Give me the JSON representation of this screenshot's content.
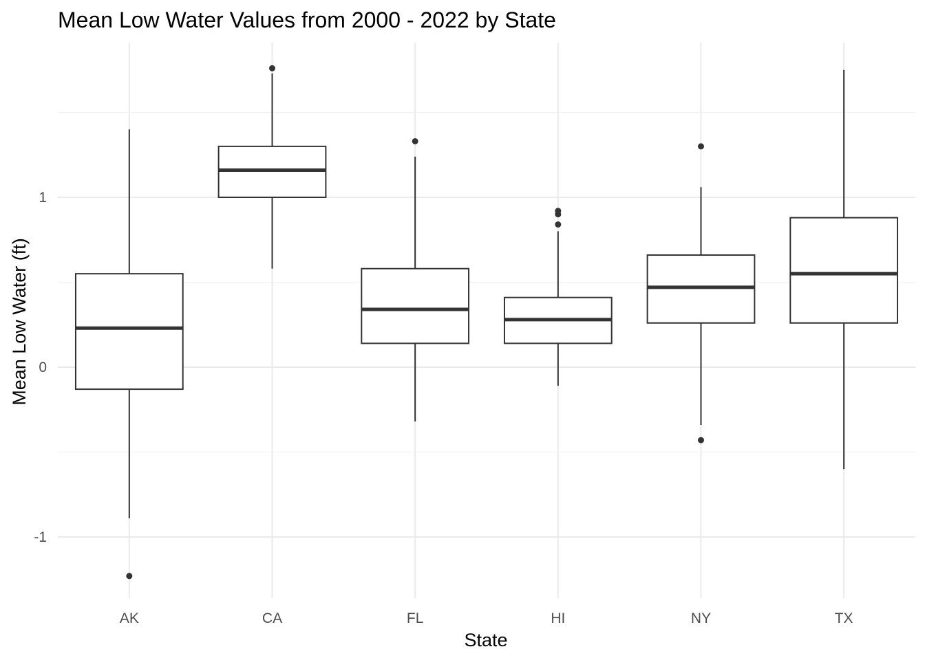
{
  "chart_data": {
    "type": "boxplot",
    "title": "Mean Low Water Values from 2000 - 2022 by State",
    "xlabel": "State",
    "ylabel": "Mean Low Water (ft)",
    "ylim": [
      -1.35,
      1.85
    ],
    "yticks": [
      -1,
      0,
      1
    ],
    "ytick_labels": [
      "-1",
      "0",
      "1"
    ],
    "grid": true,
    "categories": [
      "AK",
      "CA",
      "FL",
      "HI",
      "NY",
      "TX"
    ],
    "boxes": [
      {
        "category": "AK",
        "whisker_low": -0.89,
        "q1": -0.13,
        "median": 0.23,
        "q3": 0.55,
        "whisker_high": 1.4,
        "outliers": [
          -1.23
        ]
      },
      {
        "category": "CA",
        "whisker_low": 0.58,
        "q1": 1.0,
        "median": 1.16,
        "q3": 1.3,
        "whisker_high": 1.73,
        "outliers": [
          1.76
        ]
      },
      {
        "category": "FL",
        "whisker_low": -0.32,
        "q1": 0.14,
        "median": 0.34,
        "q3": 0.58,
        "whisker_high": 1.24,
        "outliers": [
          1.33
        ]
      },
      {
        "category": "HI",
        "whisker_low": -0.11,
        "q1": 0.14,
        "median": 0.28,
        "q3": 0.41,
        "whisker_high": 0.8,
        "outliers": [
          0.84,
          0.9,
          0.92
        ]
      },
      {
        "category": "NY",
        "whisker_low": -0.34,
        "q1": 0.26,
        "median": 0.47,
        "q3": 0.66,
        "whisker_high": 1.06,
        "outliers": [
          1.3,
          -0.43
        ]
      },
      {
        "category": "TX",
        "whisker_low": -0.6,
        "q1": 0.26,
        "median": 0.55,
        "q3": 0.88,
        "whisker_high": 1.75,
        "outliers": []
      }
    ]
  }
}
